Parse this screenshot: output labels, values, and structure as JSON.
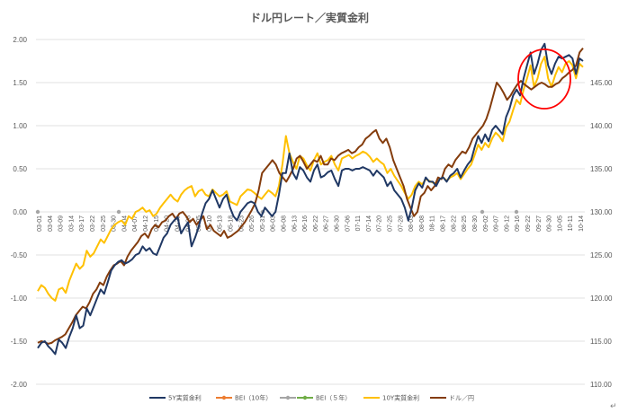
{
  "chart_data": {
    "type": "line",
    "title": "ドル円レート／実質金利",
    "corner_mark": "↵",
    "y_left": {
      "min": -2.0,
      "max": 2.0,
      "ticks": [
        "2.00",
        "1.50",
        "1.00",
        "0.50",
        "0.00",
        "-0.50",
        "-1.00",
        "-1.50",
        "-2.00"
      ]
    },
    "y_right": {
      "min": 110,
      "max": 150,
      "ticks": [
        "145.00",
        "140.00",
        "135.00",
        "130.00",
        "125.00",
        "120.00",
        "115.00",
        "110.00"
      ]
    },
    "x_ticks": [
      "03-01",
      "03-04",
      "03-09",
      "03-14",
      "03-17",
      "03-22",
      "03-25",
      "03-30",
      "04-04",
      "04-07",
      "04-12",
      "04-15",
      "04-20",
      "04-25",
      "04-28",
      "05-05",
      "05-10",
      "05-13",
      "05-18",
      "05-23",
      "05-26",
      "05-31",
      "06-03",
      "06-08",
      "06-13",
      "06-16",
      "06-22",
      "06-27",
      "06-30",
      "07-06",
      "07-11",
      "07-14",
      "07-20",
      "07-25",
      "07-28",
      "08-03",
      "08-08",
      "08-11",
      "08-17",
      "08-22",
      "08-25",
      "08-30",
      "09-02",
      "09-07",
      "09-12",
      "09-16",
      "09-22",
      "09-27",
      "09-30",
      "10-05",
      "10-11",
      "10-14"
    ],
    "grid": "horizontal",
    "legend_position": "bottom",
    "annotation": {
      "shape": "circle",
      "color": "#ff0000",
      "position": "top-right"
    },
    "series": [
      {
        "name": "5Y実質金利",
        "axis": "left",
        "color": "#203864",
        "values": [
          -1.58,
          -1.52,
          -1.5,
          -1.56,
          -1.6,
          -1.65,
          -1.48,
          -1.52,
          -1.58,
          -1.45,
          -1.35,
          -1.2,
          -1.35,
          -1.32,
          -1.12,
          -1.2,
          -1.1,
          -1.0,
          -0.9,
          -0.95,
          -0.82,
          -0.68,
          -0.62,
          -0.58,
          -0.56,
          -0.6,
          -0.58,
          -0.55,
          -0.5,
          -0.48,
          -0.4,
          -0.45,
          -0.42,
          -0.48,
          -0.5,
          -0.4,
          -0.3,
          -0.25,
          -0.15,
          -0.1,
          -0.06,
          -0.25,
          -0.18,
          -0.12,
          -0.4,
          -0.3,
          -0.18,
          -0.02,
          0.1,
          0.15,
          0.25,
          0.15,
          0.05,
          0.15,
          0.2,
          0.05,
          -0.05,
          -0.1,
          0.0,
          0.05,
          0.1,
          0.12,
          0.1,
          0.0,
          -0.05,
          0.05,
          0.0,
          -0.05,
          0.0,
          0.2,
          0.45,
          0.45,
          0.68,
          0.45,
          0.38,
          0.52,
          0.48,
          0.4,
          0.35,
          0.48,
          0.55,
          0.4,
          0.42,
          0.46,
          0.48,
          0.38,
          0.3,
          0.48,
          0.5,
          0.5,
          0.48,
          0.5,
          0.5,
          0.52,
          0.5,
          0.48,
          0.42,
          0.48,
          0.44,
          0.4,
          0.3,
          0.35,
          0.25,
          0.2,
          0.15,
          0.05,
          -0.1,
          0.05,
          0.25,
          0.33,
          0.28,
          0.4,
          0.35,
          0.35,
          0.3,
          0.38,
          0.4,
          0.35,
          0.42,
          0.45,
          0.5,
          0.4,
          0.48,
          0.55,
          0.6,
          0.75,
          0.88,
          0.8,
          0.9,
          0.82,
          0.95,
          1.0,
          0.95,
          0.9,
          1.1,
          1.2,
          1.35,
          1.42,
          1.35,
          1.55,
          1.7,
          1.85,
          1.6,
          1.72,
          1.88,
          1.95,
          1.7,
          1.6,
          1.72,
          1.8,
          1.78,
          1.8,
          1.82,
          1.78,
          1.6,
          1.78,
          1.75
        ]
      },
      {
        "name": "BEI（10年）",
        "axis": "left",
        "color": "#ed7d31",
        "values": []
      },
      {
        "name": "",
        "axis": "left",
        "color": "#a5a5a5",
        "values": [
          0,
          0,
          0,
          0,
          0
        ]
      },
      {
        "name": "BEI（５年）",
        "axis": "left",
        "color": "#70ad47",
        "values": []
      },
      {
        "name": "10Y実質金利",
        "axis": "left",
        "color": "#ffc000",
        "values": [
          -0.92,
          -0.85,
          -0.88,
          -0.95,
          -1.0,
          -1.03,
          -0.9,
          -0.88,
          -0.94,
          -0.8,
          -0.7,
          -0.6,
          -0.66,
          -0.62,
          -0.45,
          -0.52,
          -0.48,
          -0.4,
          -0.32,
          -0.36,
          -0.28,
          -0.2,
          -0.15,
          -0.12,
          -0.1,
          -0.15,
          -0.05,
          -0.08,
          0.0,
          0.02,
          0.05,
          0.0,
          0.02,
          -0.05,
          -0.02,
          0.05,
          0.1,
          0.15,
          0.2,
          0.15,
          0.12,
          0.2,
          0.25,
          0.28,
          0.3,
          0.18,
          0.24,
          0.26,
          0.2,
          0.18,
          0.26,
          0.22,
          0.18,
          0.2,
          0.24,
          0.12,
          0.1,
          0.08,
          0.18,
          0.22,
          0.26,
          0.25,
          0.22,
          0.18,
          0.15,
          0.2,
          0.25,
          0.22,
          0.18,
          0.3,
          0.55,
          0.88,
          0.68,
          0.58,
          0.5,
          0.65,
          0.62,
          0.54,
          0.48,
          0.6,
          0.68,
          0.55,
          0.58,
          0.6,
          0.65,
          0.55,
          0.48,
          0.62,
          0.64,
          0.66,
          0.62,
          0.65,
          0.67,
          0.7,
          0.68,
          0.64,
          0.58,
          0.62,
          0.58,
          0.55,
          0.45,
          0.5,
          0.42,
          0.36,
          0.3,
          0.22,
          0.15,
          0.2,
          0.3,
          0.35,
          0.32,
          0.38,
          0.36,
          0.34,
          0.33,
          0.38,
          0.4,
          0.36,
          0.4,
          0.42,
          0.45,
          0.38,
          0.44,
          0.5,
          0.55,
          0.66,
          0.78,
          0.72,
          0.8,
          0.75,
          0.85,
          0.92,
          0.88,
          0.82,
          0.98,
          1.05,
          1.18,
          1.3,
          1.25,
          1.42,
          1.55,
          1.7,
          1.45,
          1.55,
          1.72,
          1.8,
          1.55,
          1.45,
          1.58,
          1.68,
          1.62,
          1.72,
          1.75,
          1.7,
          1.55,
          1.72,
          1.68
        ]
      },
      {
        "name": "ドル／円",
        "axis": "right",
        "color": "#843c0c",
        "values": [
          114.8,
          115.0,
          114.9,
          114.7,
          114.8,
          115.1,
          115.3,
          115.5,
          115.8,
          116.5,
          117.2,
          118.0,
          118.5,
          119.0,
          118.8,
          119.5,
          120.5,
          121.0,
          121.8,
          121.5,
          122.5,
          123.2,
          123.8,
          124.0,
          124.3,
          123.8,
          124.8,
          125.5,
          126.0,
          126.5,
          127.2,
          127.5,
          127.0,
          128.0,
          128.5,
          128.2,
          128.8,
          129.0,
          129.5,
          129.8,
          129.2,
          129.8,
          130.0,
          129.5,
          128.8,
          129.2,
          128.5,
          129.0,
          129.5,
          128.0,
          128.5,
          127.8,
          127.5,
          127.2,
          127.8,
          127.0,
          127.2,
          127.5,
          127.8,
          128.3,
          128.8,
          129.5,
          130.2,
          131.0,
          132.5,
          134.5,
          135.0,
          135.5,
          136.0,
          135.5,
          134.5,
          134.0,
          133.5,
          134.2,
          135.0,
          136.2,
          136.5,
          135.8,
          135.0,
          135.5,
          136.0,
          135.8,
          136.5,
          135.5,
          135.5,
          136.2,
          136.0,
          136.5,
          136.8,
          137.0,
          137.2,
          136.8,
          137.0,
          137.5,
          137.8,
          138.5,
          138.8,
          139.2,
          139.5,
          138.5,
          138.0,
          138.5,
          137.5,
          136.0,
          135.0,
          134.0,
          133.0,
          131.5,
          130.5,
          129.5,
          130.0,
          131.8,
          132.2,
          133.0,
          132.5,
          133.0,
          134.0,
          133.8,
          135.0,
          135.5,
          135.2,
          136.0,
          136.5,
          137.0,
          136.8,
          137.5,
          138.5,
          139.0,
          139.5,
          140.0,
          140.8,
          142.0,
          143.5,
          145.0,
          144.5,
          143.8,
          143.0,
          143.5,
          144.2,
          144.8,
          145.2,
          144.8,
          144.5,
          144.2,
          144.5,
          144.8,
          145.0,
          144.8,
          144.5,
          144.5,
          144.8,
          145.0,
          145.5,
          145.8,
          146.2,
          146.5,
          147.0,
          148.5,
          149.0
        ]
      }
    ]
  }
}
